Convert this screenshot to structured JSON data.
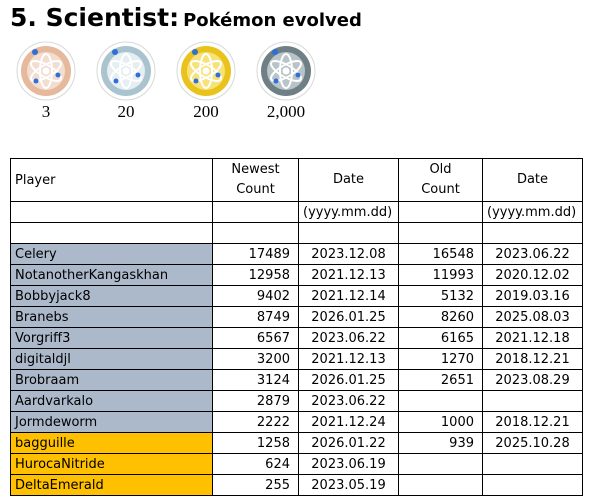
{
  "title": {
    "main": "5. Scientist:",
    "sub": "Pokémon evolved"
  },
  "medals": [
    {
      "tier": "bronze",
      "threshold": "3",
      "ring": "#e6b89c",
      "core": "#f3ddd0"
    },
    {
      "tier": "silver",
      "threshold": "20",
      "ring": "#a9c3cf",
      "core": "#e6eef2"
    },
    {
      "tier": "gold",
      "threshold": "200",
      "ring": "#e9c21c",
      "core": "#f7e27a"
    },
    {
      "tier": "platinum",
      "threshold": "2,000",
      "ring": "#6f7f86",
      "core": "#b9c4c8"
    }
  ],
  "table": {
    "headers": {
      "player": "Player",
      "newest_count_1": "Newest",
      "newest_count_2": "Count",
      "date": "Date",
      "old_count_1": "Old",
      "old_count_2": "Count",
      "date2": "Date"
    },
    "format_row": {
      "date": "(yyyy.mm.dd)",
      "date2": "(yyyy.mm.dd)"
    },
    "rows": [
      {
        "player": "Celery",
        "newest": "17489",
        "date": "2023.12.08",
        "old": "16548",
        "old_date": "2023.06.22",
        "color": "blue"
      },
      {
        "player": "NotanotherKangaskhan",
        "newest": "12958",
        "date": "2021.12.13",
        "old": "11993",
        "old_date": "2020.12.02",
        "color": "blue"
      },
      {
        "player": "Bobbyjack8",
        "newest": "9402",
        "date": "2021.12.14",
        "old": "5132",
        "old_date": "2019.03.16",
        "color": "blue"
      },
      {
        "player": "Branebs",
        "newest": "8749",
        "date": "2026.01.25",
        "old": "8260",
        "old_date": "2025.08.03",
        "color": "blue"
      },
      {
        "player": "Vorgriff3",
        "newest": "6567",
        "date": "2023.06.22",
        "old": "6165",
        "old_date": "2021.12.18",
        "color": "blue"
      },
      {
        "player": "digitaldjl",
        "newest": "3200",
        "date": "2021.12.13",
        "old": "1270",
        "old_date": "2018.12.21",
        "color": "blue"
      },
      {
        "player": "Brobraam",
        "newest": "3124",
        "date": "2026.01.25",
        "old": "2651",
        "old_date": "2023.08.29",
        "color": "blue"
      },
      {
        "player": "Aardvarkalo",
        "newest": "2879",
        "date": "2023.06.22",
        "old": "",
        "old_date": "",
        "color": "blue"
      },
      {
        "player": "Jormdeworm",
        "newest": "2222",
        "date": "2021.12.24",
        "old": "1000",
        "old_date": "2018.12.21",
        "color": "blue"
      },
      {
        "player": "bagguille",
        "newest": "1258",
        "date": "2026.01.22",
        "old": "939",
        "old_date": "2025.10.28",
        "color": "gold"
      },
      {
        "player": "HurocaNitride",
        "newest": "624",
        "date": "2023.06.19",
        "old": "",
        "old_date": "",
        "color": "gold"
      },
      {
        "player": "DeltaEmerald",
        "newest": "255",
        "date": "2023.05.19",
        "old": "",
        "old_date": "",
        "color": "gold"
      }
    ]
  }
}
